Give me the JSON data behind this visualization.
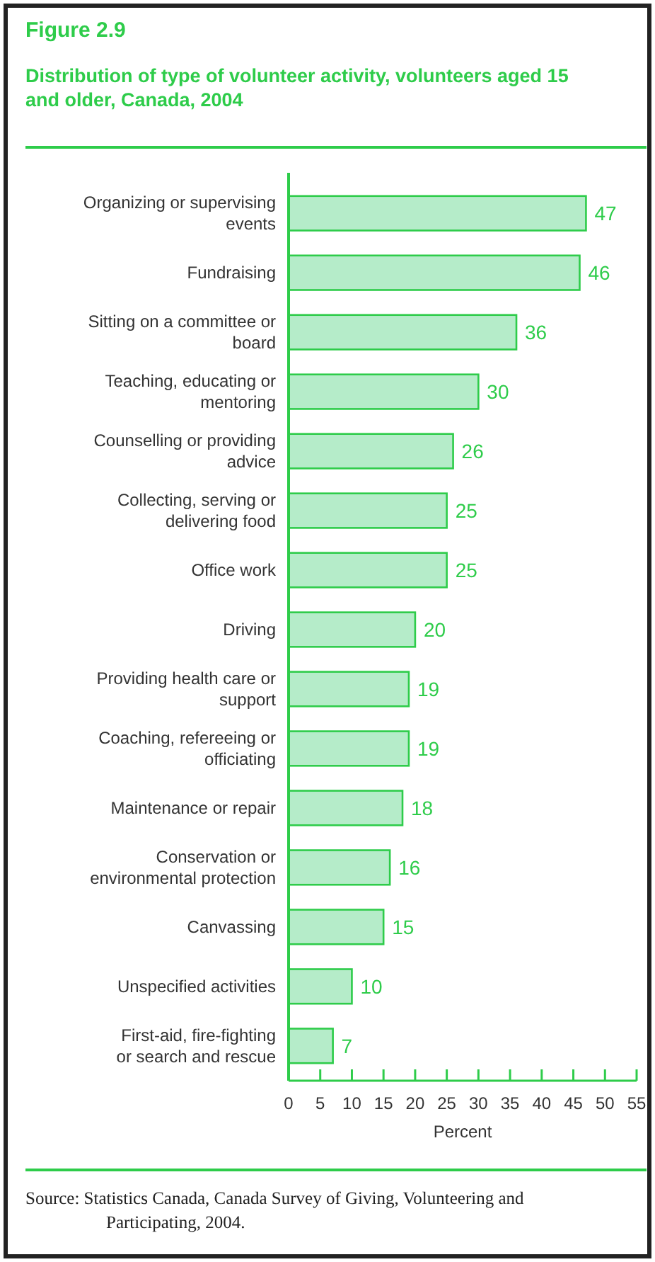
{
  "chart_data": {
    "type": "bar",
    "orientation": "horizontal",
    "title": "Figure 2.9",
    "subtitle": "Distribution of type of volunteer activity, volunteers aged 15 and older, Canada, 2004",
    "xlabel": "Percent",
    "categories": [
      "Organizing or supervising events",
      "Fundraising",
      "Sitting on a committee or board",
      "Teaching, educating or mentoring",
      "Counselling or providing advice",
      "Collecting, serving or delivering food",
      "Office work",
      "Driving",
      "Providing health care or support",
      "Coaching, refereeing or officiating",
      "Maintenance or repair",
      "Conservation or environmental protection",
      "Canvassing",
      "Unspecified activities",
      "First-aid, fire-fighting or search and rescue"
    ],
    "values": [
      47,
      46,
      36,
      30,
      26,
      25,
      25,
      20,
      19,
      19,
      18,
      16,
      15,
      10,
      7
    ],
    "color": "#b5ecc9",
    "data_labels": true,
    "xlim": [
      0,
      55
    ],
    "xticks": [
      0,
      5,
      10,
      15,
      20,
      25,
      30,
      35,
      40,
      45,
      50,
      55
    ],
    "grid": false,
    "annotations": [
      "Source: Statistics Canada, Canada Survey of Giving, Volunteering and Participating, 2004."
    ]
  }
}
